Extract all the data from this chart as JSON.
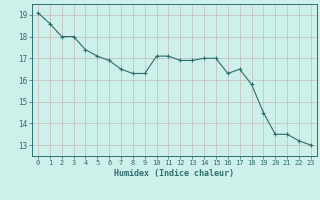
{
  "x": [
    0,
    1,
    2,
    3,
    4,
    5,
    6,
    7,
    8,
    9,
    10,
    11,
    12,
    13,
    14,
    15,
    16,
    17,
    18,
    19,
    20,
    21,
    22,
    23
  ],
  "y": [
    19.1,
    18.6,
    18.0,
    18.0,
    17.4,
    17.1,
    16.9,
    16.5,
    16.3,
    16.3,
    17.1,
    17.1,
    16.9,
    16.9,
    17.0,
    17.0,
    16.3,
    16.5,
    15.8,
    14.5,
    13.5,
    13.5,
    13.2,
    13.0
  ],
  "xlabel": "Humidex (Indice chaleur)",
  "xlim": [
    -0.5,
    23.5
  ],
  "ylim": [
    12.5,
    19.5
  ],
  "yticks": [
    13,
    14,
    15,
    16,
    17,
    18,
    19
  ],
  "xticks": [
    0,
    1,
    2,
    3,
    4,
    5,
    6,
    7,
    8,
    9,
    10,
    11,
    12,
    13,
    14,
    15,
    16,
    17,
    18,
    19,
    20,
    21,
    22,
    23
  ],
  "line_color": "#2d6e6e",
  "marker": "+",
  "bg_color": "#cef0ea",
  "grid_color": "#c8b8b8",
  "tick_color": "#2d6e6e",
  "label_color": "#2d6e6e",
  "font_family": "monospace"
}
